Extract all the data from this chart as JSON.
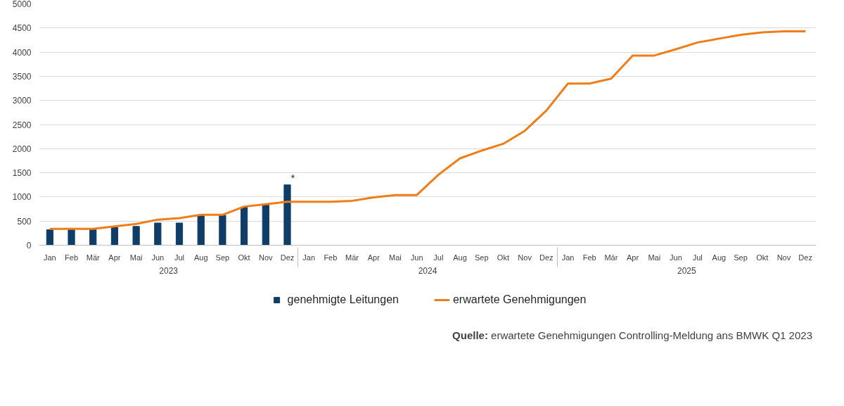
{
  "chart_data": {
    "type": "bar",
    "categories": [
      "Jan",
      "Feb",
      "Mär",
      "Apr",
      "Mai",
      "Jun",
      "Jul",
      "Aug",
      "Sep",
      "Okt",
      "Nov",
      "Dez",
      "Jan",
      "Feb",
      "Mär",
      "Apr",
      "Mai",
      "Jun",
      "Jul",
      "Aug",
      "Sep",
      "Okt",
      "Nov",
      "Dez",
      "Jan",
      "Feb",
      "Mär",
      "Apr",
      "Mai",
      "Jun",
      "Jul",
      "Aug",
      "Sep",
      "Okt",
      "Nov",
      "Dez"
    ],
    "series": [
      {
        "name": "genehmigte Leitungen",
        "color": "#0f3d68",
        "values": [
          320,
          320,
          320,
          370,
          390,
          460,
          460,
          610,
          620,
          790,
          830,
          1250,
          null,
          null,
          null,
          null,
          null,
          null,
          null,
          null,
          null,
          null,
          null,
          null,
          null,
          null,
          null,
          null,
          null,
          null,
          null,
          null,
          null,
          null,
          null,
          null
        ]
      },
      {
        "name": "erwartete Genehmigungen",
        "type": "line",
        "color": "#f07d17",
        "values": [
          340,
          340,
          340,
          390,
          440,
          530,
          560,
          630,
          630,
          800,
          850,
          900,
          900,
          900,
          920,
          990,
          1040,
          1040,
          1460,
          1800,
          1960,
          2100,
          2370,
          2790,
          3350,
          3350,
          3450,
          3930,
          3930,
          4060,
          4200,
          4280,
          4360,
          4410,
          4430,
          4430
        ]
      }
    ],
    "ylim": [
      0,
      5000
    ],
    "yticks": [
      0,
      500,
      1000,
      1500,
      2000,
      2500,
      3000,
      3500,
      4000,
      4500,
      5000
    ],
    "grid": "y",
    "legend": "bottom",
    "annotations": [
      "2023",
      "2024",
      "2025",
      {
        "text": "*",
        "x": "Dez",
        "y": 1250
      },
      "Quelle: erwartete Genehmigungen Controlling-Meldung ans BMWK Q1 2023"
    ]
  }
}
